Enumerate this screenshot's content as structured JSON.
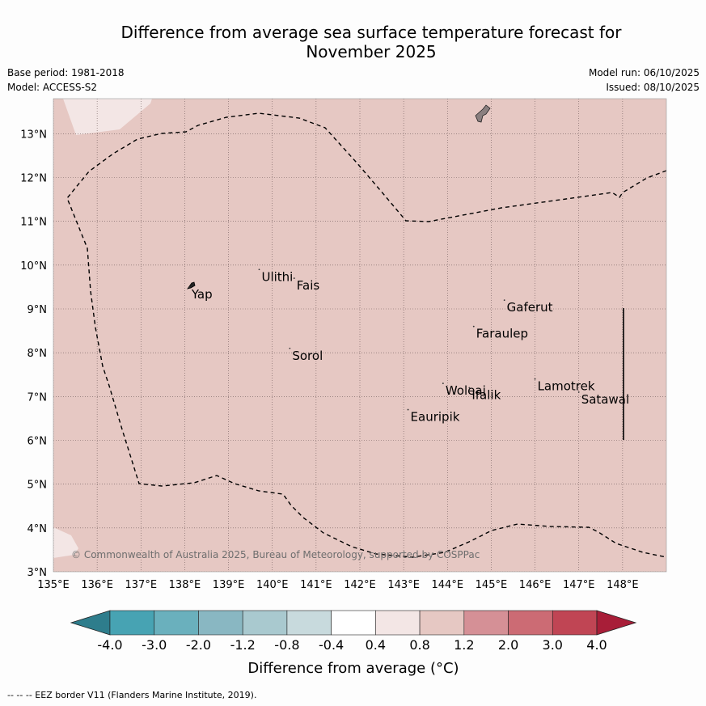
{
  "header": {
    "title_line1": "Difference from average sea surface temperature forecast for",
    "title_line2": "November 2025",
    "base_period": "Base period: 1981-2018",
    "model": "Model: ACCESS-S2",
    "model_run": "Model run: 06/10/2025",
    "issued": "Issued: 08/10/2025"
  },
  "map": {
    "lon_range": [
      135,
      149
    ],
    "lat_range": [
      3,
      13.8
    ],
    "fill_color": "#e6c8c3",
    "light_fill_color": "#f3e6e5",
    "lon_ticks": [
      "135°E",
      "136°E",
      "137°E",
      "138°E",
      "139°E",
      "140°E",
      "141°E",
      "142°E",
      "143°E",
      "144°E",
      "145°E",
      "146°E",
      "147°E",
      "148°E"
    ],
    "lat_ticks": [
      "3°N",
      "4°N",
      "5°N",
      "6°N",
      "7°N",
      "8°N",
      "9°N",
      "10°N",
      "11°N",
      "12°N",
      "13°N"
    ],
    "places": [
      {
        "name": "Yap",
        "lon": 138.1,
        "lat": 9.5
      },
      {
        "name": "Ulithi",
        "lon": 139.7,
        "lat": 9.9
      },
      {
        "name": "Fais",
        "lon": 140.5,
        "lat": 9.7
      },
      {
        "name": "Gaferut",
        "lon": 145.3,
        "lat": 9.2
      },
      {
        "name": "Faraulep",
        "lon": 144.6,
        "lat": 8.6
      },
      {
        "name": "Sorol",
        "lon": 140.4,
        "lat": 8.1
      },
      {
        "name": "Lamotrek",
        "lon": 146.0,
        "lat": 7.4
      },
      {
        "name": "Woleai",
        "lon": 143.9,
        "lat": 7.3
      },
      {
        "name": "Ifalik",
        "lon": 144.5,
        "lat": 7.2
      },
      {
        "name": "Satawal",
        "lon": 147.0,
        "lat": 7.1
      },
      {
        "name": "Eauripik",
        "lon": 143.1,
        "lat": 6.7
      }
    ],
    "copyright": "© Commonwealth of Australia 2025, Bureau of Meteorology, supported by COSPPac"
  },
  "colorbar": {
    "labels": [
      "-4.0",
      "-3.0",
      "-2.0",
      "-1.2",
      "-0.8",
      "-0.4",
      "0.4",
      "0.8",
      "1.2",
      "2.0",
      "3.0",
      "4.0"
    ],
    "colors": [
      "#2e7d8c",
      "#47a3b3",
      "#6ab0bd",
      "#89b7c2",
      "#a9c9cf",
      "#c8dadd",
      "#ffffff",
      "#f3e6e5",
      "#e6c8c3",
      "#d59096",
      "#cc6b74",
      "#c04554",
      "#a81e38"
    ],
    "title": "Difference from average (°C)"
  },
  "footer": {
    "legend": "--  --  -- EEZ border V11 (Flanders Marine Institute, 2019)."
  }
}
